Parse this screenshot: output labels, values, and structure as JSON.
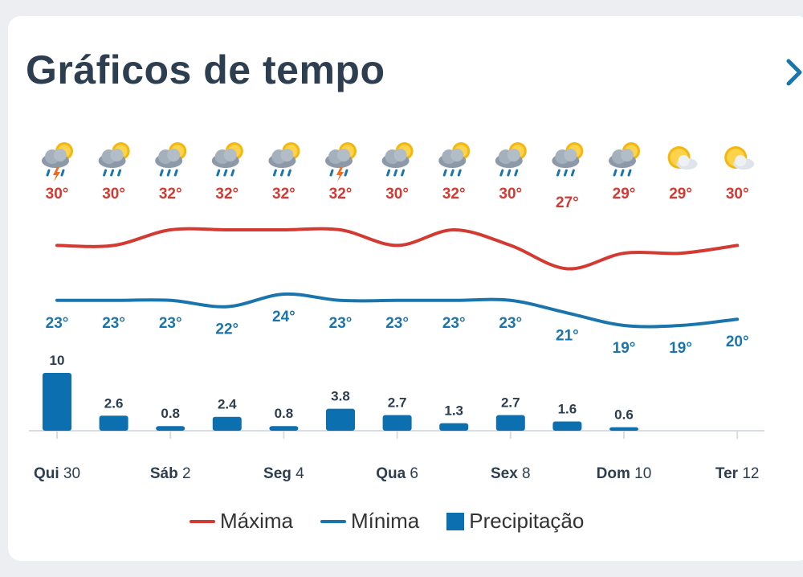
{
  "header": {
    "title": "Gráficos de tempo"
  },
  "colors": {
    "max": "#d23a32",
    "min": "#1b75ad",
    "precip": "#0b6fb0",
    "axis": "#d8dde3",
    "label": "#2d3e50"
  },
  "legend": {
    "max_label": "Máxima",
    "min_label": "Mínima",
    "precip_label": "Precipitação"
  },
  "chart_data": {
    "type": "line+bar",
    "days": [
      {
        "icon": "thunderstorm-sun-icon",
        "max": 30,
        "min": 23,
        "precip": 10
      },
      {
        "icon": "rain-sun-icon",
        "max": 30,
        "min": 23,
        "precip": 2.6
      },
      {
        "icon": "rain-sun-icon",
        "max": 32,
        "min": 23,
        "precip": 0.8
      },
      {
        "icon": "rain-sun-icon",
        "max": 32,
        "min": 22,
        "precip": 2.4
      },
      {
        "icon": "rain-sun-icon",
        "max": 32,
        "min": 24,
        "precip": 0.8
      },
      {
        "icon": "thunderstorm-sun-icon",
        "max": 32,
        "min": 23,
        "precip": 3.8
      },
      {
        "icon": "rain-sun-icon",
        "max": 30,
        "min": 23,
        "precip": 2.7
      },
      {
        "icon": "rain-sun-icon",
        "max": 32,
        "min": 23,
        "precip": 1.3
      },
      {
        "icon": "rain-sun-icon",
        "max": 30,
        "min": 23,
        "precip": 2.7
      },
      {
        "icon": "rain-sun-icon",
        "max": 27,
        "min": 21,
        "precip": 1.6
      },
      {
        "icon": "rain-sun-icon",
        "max": 29,
        "min": 19,
        "precip": 0.6
      },
      {
        "icon": "sun-cloud-icon",
        "max": 29,
        "min": 19,
        "precip": null
      },
      {
        "icon": "sun-cloud-icon",
        "max": 30,
        "min": 20,
        "precip": null
      }
    ],
    "x_ticks": [
      {
        "day": "Qui",
        "num": "30"
      },
      {
        "day": "Sáb",
        "num": "2"
      },
      {
        "day": "Seg",
        "num": "4"
      },
      {
        "day": "Qua",
        "num": "6"
      },
      {
        "day": "Sex",
        "num": "8"
      },
      {
        "day": "Dom",
        "num": "10"
      },
      {
        "day": "Ter",
        "num": "12"
      }
    ],
    "x_tick_every": 2,
    "degree_suffix": "°",
    "legend_position": "bottom"
  }
}
